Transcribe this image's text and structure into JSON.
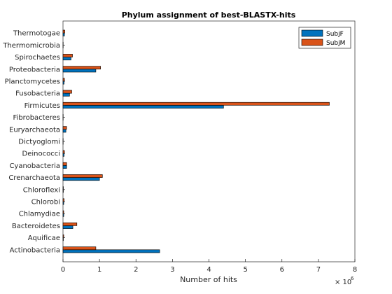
{
  "chart_data": {
    "type": "bar",
    "orientation": "horizontal",
    "title": "Phylum assignment of best-BLASTX-hits",
    "xlabel": "Number of hits",
    "ylabel": "",
    "x_exponent_label": "× 10^6",
    "x_exponent_base": "× 10",
    "x_exponent_power": "6",
    "xlim": [
      0,
      8
    ],
    "xticks": [
      0,
      1,
      2,
      3,
      4,
      5,
      6,
      7,
      8
    ],
    "categories": [
      "Actinobacteria",
      "Aquificae",
      "Bacteroidetes",
      "Chlamydiae",
      "Chlorobi",
      "Chloroflexi",
      "Crenarchaeota",
      "Cyanobacteria",
      "Deinococci",
      "Dictyoglomi",
      "Euryarchaeota",
      "Fibrobacteres",
      "Firmicutes",
      "Fusobacteria",
      "Planctomycetes",
      "Proteobacteria",
      "Spirochaetes",
      "Thermomicrobia",
      "Thermotogae"
    ],
    "series": [
      {
        "name": "SubjF",
        "color": "#0072BD",
        "values": [
          2.65,
          0.01,
          0.27,
          0.02,
          0.02,
          0.01,
          1.0,
          0.1,
          0.03,
          0.005,
          0.08,
          0.005,
          4.4,
          0.18,
          0.03,
          0.9,
          0.22,
          0.005,
          0.04
        ]
      },
      {
        "name": "SubjM",
        "color": "#D95319",
        "values": [
          0.9,
          0.02,
          0.38,
          0.02,
          0.03,
          0.01,
          1.08,
          0.1,
          0.04,
          0.005,
          0.1,
          0.005,
          7.3,
          0.24,
          0.04,
          1.03,
          0.26,
          0.005,
          0.05
        ]
      }
    ],
    "legend_position": "top-right",
    "grid": false
  }
}
